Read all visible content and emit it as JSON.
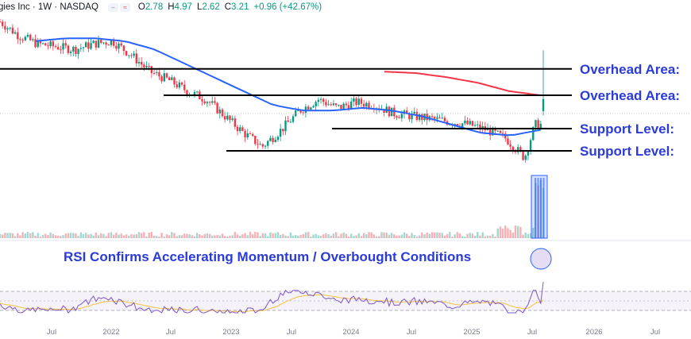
{
  "header": {
    "symbol_text": "gies Inc · 1W · NASDAQ",
    "open_label": "O",
    "open": "2.78",
    "high_label": "H",
    "high": "4.97",
    "low_label": "L",
    "low": "2.62",
    "close_label": "C",
    "close": "3.21",
    "change": "+0.96 (+42.67%)"
  },
  "annotations": [
    {
      "text": "Overhead Area:",
      "price": 4.3,
      "color": "#2b3bd9"
    },
    {
      "text": "Overhead Area:",
      "price": 3.35,
      "color": "#2b3bd9"
    },
    {
      "text": "Support Level:",
      "price": 2.15,
      "color": "#2b3bd9"
    },
    {
      "text": "Support Level:",
      "price": 1.35,
      "color": "#2b3bd9"
    }
  ],
  "rsi_caption": "RSI Confirms Accelerating Momentum / Overbought Conditions",
  "colors": {
    "up": "#089981",
    "down": "#f23645",
    "ma50": "#2962ff",
    "ma200": "#f23645",
    "rsi": "#7e57c2",
    "rsi_ma": "#f5c242",
    "annotation": "#2b3bd9",
    "level_line": "#000000"
  },
  "chart_data": {
    "type": "candlestick",
    "title": "",
    "x_ticks": [
      "Jul",
      "2022",
      "Jul",
      "2023",
      "Jul",
      "2024",
      "Jul",
      "2025",
      "Jul",
      "2026",
      "Jul"
    ],
    "price_series": {
      "name": "",
      "x_start": "2021-03",
      "x_end": "2025-07",
      "approx_close": [
        6.0,
        5.5,
        5.2,
        5.1,
        5.0,
        5.2,
        5.3,
        4.8,
        4.2,
        3.9,
        3.5,
        3.2,
        2.6,
        2.0,
        1.5,
        2.1,
        2.8,
        3.2,
        2.9,
        3.1,
        3.0,
        2.7,
        2.6,
        2.5,
        2.4,
        2.3,
        2.1,
        1.8,
        1.1,
        3.21
      ],
      "last_week": {
        "open": 2.78,
        "high": 4.97,
        "low": 2.62,
        "close": 3.21
      }
    },
    "moving_averages": [
      {
        "name": "",
        "color": "#2962ff",
        "approx_values": [
          5.3,
          5.4,
          5.4,
          5.3,
          5.0,
          4.5,
          4.0,
          3.5,
          3.0,
          2.8,
          2.8,
          2.9,
          2.8,
          2.6,
          2.3,
          2.0,
          1.9,
          2.1
        ]
      },
      {
        "name": "",
        "color": "#f23645",
        "approx_values": [
          4.2,
          4.15,
          4.0,
          3.8,
          3.5,
          3.35
        ]
      }
    ],
    "volume_note": "volume spike highlighted on final weeks",
    "rsi": {
      "overbought": 70,
      "oversold": 30,
      "final_value": 90
    },
    "grid": false
  }
}
